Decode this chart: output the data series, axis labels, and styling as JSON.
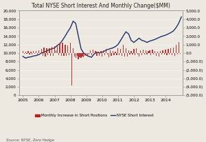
{
  "title": "Total NYSE Short Interest And Monthly Change($MM)",
  "source": "Source: NYSE, Zero Hedge",
  "background_color": "#ede8e0",
  "bar_color": "#b22222",
  "line_color": "#1c2f6e",
  "short_interest_x": [
    2005.0,
    2005.17,
    2005.33,
    2005.5,
    2005.67,
    2005.83,
    2006.0,
    2006.17,
    2006.33,
    2006.5,
    2006.67,
    2006.83,
    2007.0,
    2007.17,
    2007.33,
    2007.5,
    2007.67,
    2007.83,
    2008.0,
    2008.17,
    2008.33,
    2008.5,
    2008.67,
    2008.83,
    2009.0,
    2009.17,
    2009.33,
    2009.5,
    2009.67,
    2009.83,
    2010.0,
    2010.17,
    2010.33,
    2010.5,
    2010.67,
    2010.83,
    2011.0,
    2011.17,
    2011.33,
    2011.5,
    2011.67,
    2011.83,
    2012.0,
    2012.17,
    2012.33,
    2012.5,
    2012.67,
    2012.83,
    2013.0,
    2013.17,
    2013.33,
    2013.5,
    2013.67,
    2013.83,
    2014.0,
    2014.17,
    2014.33,
    2014.5,
    2014.67,
    2014.83,
    2015.0
  ],
  "short_interest_y": [
    9200,
    8800,
    9000,
    9100,
    9300,
    9400,
    9600,
    10000,
    10200,
    10500,
    10800,
    11000,
    11200,
    11800,
    12200,
    13000,
    14000,
    15000,
    16000,
    17500,
    17000,
    14000,
    11000,
    10000,
    9500,
    9200,
    9000,
    9800,
    10200,
    10000,
    10200,
    10500,
    10800,
    11000,
    11200,
    11500,
    12000,
    13000,
    14000,
    15000,
    14500,
    13000,
    12500,
    13000,
    13500,
    13000,
    12800,
    12500,
    12800,
    13000,
    13200,
    13500,
    13800,
    14000,
    14200,
    14500,
    14800,
    15200,
    16000,
    17000,
    18500
  ],
  "bar_x": [
    2005.0,
    2005.08,
    2005.17,
    2005.25,
    2005.33,
    2005.42,
    2005.5,
    2005.58,
    2005.67,
    2005.75,
    2005.83,
    2005.92,
    2006.0,
    2006.08,
    2006.17,
    2006.25,
    2006.33,
    2006.42,
    2006.5,
    2006.58,
    2006.67,
    2006.75,
    2006.83,
    2006.92,
    2007.0,
    2007.08,
    2007.17,
    2007.25,
    2007.33,
    2007.42,
    2007.5,
    2007.58,
    2007.67,
    2007.75,
    2007.83,
    2007.92,
    2008.0,
    2008.08,
    2008.17,
    2008.25,
    2008.33,
    2008.42,
    2008.5,
    2008.58,
    2008.67,
    2008.75,
    2008.83,
    2008.92,
    2009.0,
    2009.08,
    2009.17,
    2009.25,
    2009.33,
    2009.42,
    2009.5,
    2009.58,
    2009.67,
    2009.75,
    2009.83,
    2009.92,
    2010.0,
    2010.08,
    2010.17,
    2010.25,
    2010.33,
    2010.42,
    2010.5,
    2010.58,
    2010.67,
    2010.75,
    2010.83,
    2010.92,
    2011.0,
    2011.08,
    2011.17,
    2011.25,
    2011.33,
    2011.42,
    2011.5,
    2011.58,
    2011.67,
    2011.75,
    2011.83,
    2011.92,
    2012.0,
    2012.08,
    2012.17,
    2012.25,
    2012.33,
    2012.42,
    2012.5,
    2012.58,
    2012.67,
    2012.75,
    2012.83,
    2012.92,
    2013.0,
    2013.08,
    2013.17,
    2013.25,
    2013.33,
    2013.42,
    2013.5,
    2013.58,
    2013.67,
    2013.75,
    2013.83,
    2013.92,
    2014.0,
    2014.08,
    2014.17,
    2014.25,
    2014.33,
    2014.42,
    2014.5,
    2014.58,
    2014.67,
    2014.75,
    2014.83,
    2014.92
  ],
  "bar_y": [
    200,
    -100,
    150,
    -80,
    200,
    -150,
    180,
    -200,
    250,
    -100,
    200,
    -150,
    350,
    -200,
    500,
    -300,
    650,
    -400,
    550,
    -250,
    600,
    -300,
    700,
    -350,
    800,
    300,
    950,
    -250,
    1100,
    -300,
    1200,
    -350,
    1000,
    -300,
    900,
    -250,
    1200,
    -3800,
    600,
    -400,
    -600,
    -350,
    -700,
    -500,
    -600,
    -400,
    -500,
    -300,
    -350,
    -400,
    -200,
    300,
    -250,
    400,
    -200,
    250,
    -300,
    150,
    -350,
    200,
    -400,
    350,
    -250,
    450,
    -200,
    -500,
    280,
    -350,
    200,
    -280,
    180,
    -250,
    600,
    -280,
    450,
    -350,
    1000,
    -450,
    550,
    -380,
    280,
    -200,
    260,
    -180,
    500,
    -270,
    600,
    -180,
    -450,
    350,
    -280,
    420,
    -180,
    280,
    -200,
    250,
    350,
    -270,
    430,
    -180,
    270,
    -350,
    190,
    -430,
    270,
    -190,
    280,
    -180,
    370,
    -280,
    450,
    -190,
    550,
    -270,
    620,
    -360,
    1000,
    -200,
    1300,
    -100
  ],
  "left_yticks": [
    0,
    2000,
    4000,
    6000,
    8000,
    10000,
    12000,
    14000,
    16000,
    18000,
    20000
  ],
  "right_yticks": [
    -5000,
    -4000,
    -3000,
    -2000,
    -1000,
    0,
    1000,
    2000,
    3000,
    4000,
    5000
  ],
  "xtick_labels": [
    "2005",
    "2006",
    "2007",
    "2008",
    "2009",
    "2010",
    "2011",
    "2012",
    "2013",
    "2014"
  ],
  "xtick_positions": [
    2005,
    2006,
    2007,
    2008,
    2009,
    2010,
    2011,
    2012,
    2013,
    2014
  ]
}
